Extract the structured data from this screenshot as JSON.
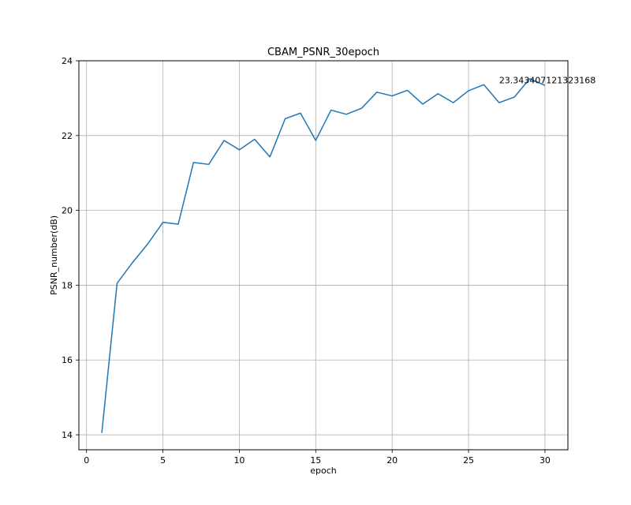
{
  "chart_data": {
    "type": "line",
    "title": "CBAM_PSNR_30epoch",
    "xlabel": "epoch",
    "ylabel": "PSNR_number(dB)",
    "xlim": [
      -0.5,
      31.5
    ],
    "ylim": [
      13.6,
      24.0
    ],
    "xticks": [
      0,
      5,
      10,
      15,
      20,
      25,
      30
    ],
    "yticks": [
      14,
      16,
      18,
      20,
      22,
      24
    ],
    "grid": true,
    "color": "#1f77b4",
    "x": [
      1,
      2,
      3,
      4,
      5,
      6,
      7,
      8,
      9,
      10,
      11,
      12,
      13,
      14,
      15,
      16,
      17,
      18,
      19,
      20,
      21,
      22,
      23,
      24,
      25,
      26,
      27,
      28,
      29,
      30
    ],
    "y": [
      14.05,
      18.05,
      18.6,
      19.1,
      19.68,
      19.63,
      21.28,
      21.23,
      21.87,
      21.62,
      21.9,
      21.43,
      22.45,
      22.6,
      21.87,
      22.68,
      22.57,
      22.73,
      23.16,
      23.06,
      23.21,
      22.84,
      23.12,
      22.88,
      23.2,
      23.36,
      22.88,
      23.03,
      23.52,
      23.343407121323168
    ],
    "annotation": {
      "text": "23.343407121323168",
      "x": 27,
      "y": 23.4
    }
  }
}
